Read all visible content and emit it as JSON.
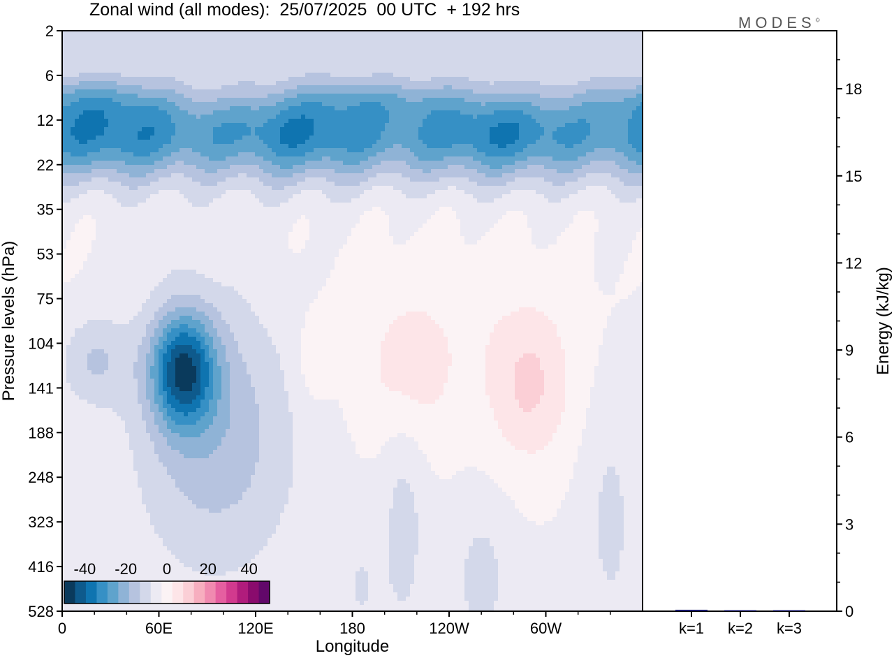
{
  "title": "Zonal wind (all modes):  25/07/2025  00 UTC  + 192 hrs",
  "logo_text": "MODES",
  "logo_mark": "©",
  "chart_data": [
    {
      "type": "heatmap",
      "title": "Zonal wind (all modes):  25/07/2025  00 UTC  + 192 hrs",
      "xlabel": "Longitude",
      "ylabel": "Pressure levels (hPa)",
      "x_ticks": [
        "0",
        "60E",
        "120E",
        "180",
        "120W",
        "60W"
      ],
      "x_tick_values": [
        0,
        60,
        120,
        180,
        240,
        300
      ],
      "xlim": [
        0,
        360
      ],
      "y_ticks": [
        "2",
        "6",
        "12",
        "22",
        "35",
        "53",
        "75",
        "104",
        "141",
        "188",
        "248",
        "323",
        "416",
        "528"
      ],
      "colorbar": {
        "ticks": [
          "-40",
          "-20",
          "0",
          "20",
          "40"
        ],
        "range": [
          -50,
          50
        ],
        "colors": [
          "#0a3a5c",
          "#0e5a8c",
          "#0f74b0",
          "#3690c5",
          "#5fa3cc",
          "#8fb3d6",
          "#b6c3df",
          "#d3d8ea",
          "#eceaf3",
          "#fbf3f5",
          "#fde5e8",
          "#fbcfd6",
          "#f7aebf",
          "#f08ab0",
          "#e55fa0",
          "#d23a8e",
          "#b01c7c",
          "#8a0b6d",
          "#62086a"
        ]
      },
      "field_description": [
        {
          "lon": [
            0,
            360
          ],
          "levels": "8-30 hPa",
          "value": -28
        },
        {
          "lon": [
            60,
            100
          ],
          "levels": "100-160 hPa",
          "value": -40
        },
        {
          "lon": [
            280,
            310
          ],
          "levels": "110-160 hPa",
          "value": 10
        }
      ]
    },
    {
      "type": "bar",
      "categories": [
        "k=1",
        "k=2",
        "k=3"
      ],
      "values": [
        0.05,
        0.02,
        0.0
      ],
      "ylabel": "Energy (kJ/kg)",
      "ylim": [
        0,
        20
      ],
      "y_ticks": [
        0,
        3,
        6,
        9,
        12,
        15,
        18
      ],
      "bar_color": "#1a1a6e"
    }
  ]
}
